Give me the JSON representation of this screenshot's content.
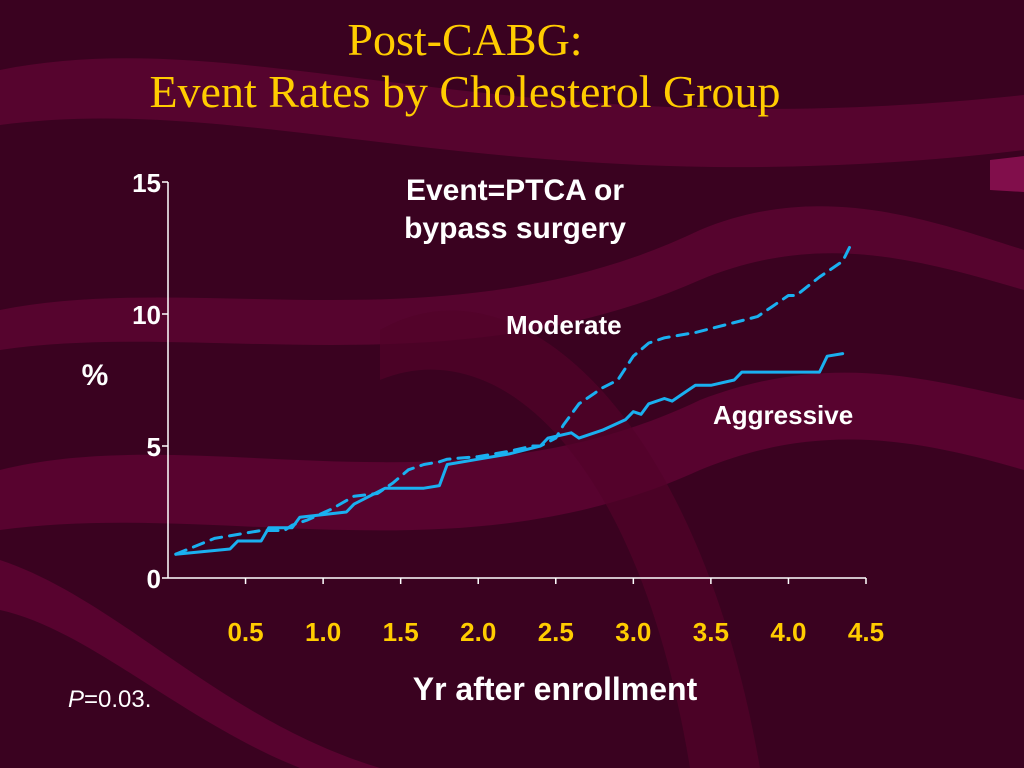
{
  "slide": {
    "title_line1": "Post-CABG:",
    "title_line2": "Event Rates by Cholesterol Group",
    "p_label": "P",
    "p_value": "=0.03."
  },
  "colors": {
    "background": "#3a0220",
    "wave": "#6a0538",
    "title": "#ffcc00",
    "text": "#ffffff",
    "series": "#1ab0f0",
    "x_tick_labels": "#ffcc00"
  },
  "chart_data": {
    "type": "line",
    "title": "Event=PTCA or bypass surgery",
    "title_line1": "Event=PTCA or",
    "title_line2": "bypass surgery",
    "xlabel": "Yr after enrollment",
    "ylabel": "%",
    "xlim": [
      0,
      4.5
    ],
    "ylim": [
      0,
      15
    ],
    "x_ticks": [
      0.5,
      1.0,
      1.5,
      2.0,
      2.5,
      3.0,
      3.5,
      4.0,
      4.5
    ],
    "x_tick_labels": [
      "0.5",
      "1.0",
      "1.5",
      "2.0",
      "2.5",
      "3.0",
      "3.5",
      "4.0",
      "4.5"
    ],
    "y_ticks": [
      0,
      5,
      10,
      15
    ],
    "y_tick_labels": [
      "0",
      "5",
      "10",
      "15"
    ],
    "grid": false,
    "legend": "inline labels",
    "series": [
      {
        "name": "Moderate",
        "style": "dashed",
        "x": [
          0.05,
          0.3,
          0.5,
          0.6,
          0.75,
          0.8,
          0.9,
          1.05,
          1.2,
          1.35,
          1.45,
          1.55,
          1.65,
          1.75,
          1.8,
          2.0,
          2.2,
          2.35,
          2.4,
          2.5,
          2.55,
          2.65,
          2.75,
          2.8,
          2.9,
          3.0,
          3.1,
          3.2,
          3.4,
          3.6,
          3.8,
          3.9,
          4.0,
          4.05,
          4.2,
          4.25,
          4.35,
          4.4
        ],
        "y": [
          0.9,
          1.5,
          1.7,
          1.8,
          1.8,
          2.0,
          2.2,
          2.6,
          3.1,
          3.2,
          3.6,
          4.1,
          4.3,
          4.4,
          4.5,
          4.6,
          4.8,
          5.0,
          5.0,
          5.3,
          5.8,
          6.6,
          7.0,
          7.2,
          7.5,
          8.4,
          8.9,
          9.1,
          9.3,
          9.6,
          9.9,
          10.3,
          10.7,
          10.7,
          11.4,
          11.6,
          12.0,
          12.6
        ]
      },
      {
        "name": "Aggressive",
        "style": "solid",
        "x": [
          0.05,
          0.4,
          0.45,
          0.6,
          0.65,
          0.8,
          0.85,
          1.15,
          1.2,
          1.4,
          1.5,
          1.65,
          1.75,
          1.8,
          2.0,
          2.2,
          2.4,
          2.45,
          2.6,
          2.65,
          2.8,
          2.95,
          3.0,
          3.05,
          3.1,
          3.2,
          3.25,
          3.3,
          3.4,
          3.5,
          3.65,
          3.7,
          3.95,
          4.05,
          4.2,
          4.25,
          4.35
        ],
        "y": [
          0.9,
          1.1,
          1.4,
          1.4,
          1.9,
          1.9,
          2.3,
          2.5,
          2.8,
          3.4,
          3.4,
          3.4,
          3.5,
          4.3,
          4.5,
          4.7,
          5.0,
          5.3,
          5.5,
          5.3,
          5.6,
          6.0,
          6.3,
          6.2,
          6.6,
          6.8,
          6.7,
          6.9,
          7.3,
          7.3,
          7.5,
          7.8,
          7.8,
          7.8,
          7.8,
          8.4,
          8.5
        ]
      }
    ]
  }
}
